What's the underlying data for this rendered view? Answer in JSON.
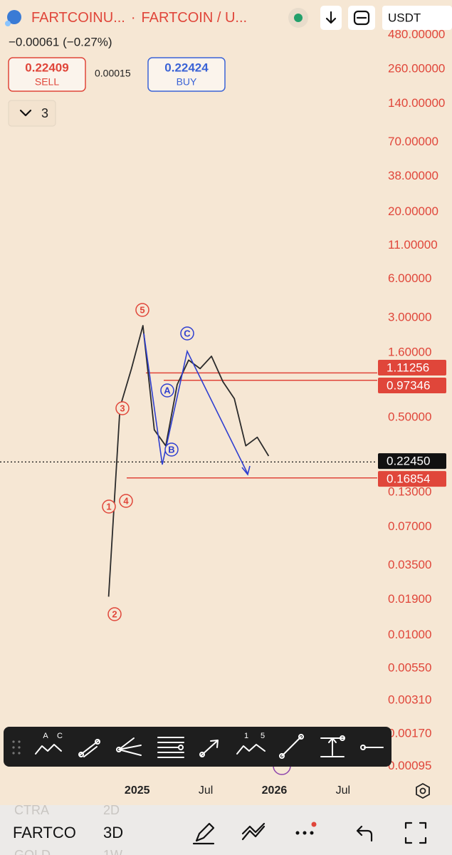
{
  "header": {
    "symbol": "FARTCOINU...",
    "separator": "·",
    "pair": "FARTCOIN / U...",
    "currency": "USDT",
    "change": "−0.00061 (−0.27%)"
  },
  "order": {
    "sell_price": "0.22409",
    "sell_label": "SELL",
    "spread": "0.00015",
    "buy_price": "0.22424",
    "buy_label": "BUY"
  },
  "indicators_toggle": "3",
  "chart_data": {
    "type": "line",
    "log_scale": true,
    "x": [
      "2024-10",
      "2024-11",
      "2024-12",
      "2025-01",
      "2025-02",
      "2025-03",
      "2025-04",
      "2025-05",
      "2025-06",
      "2025-07",
      "2025-08",
      "2025-09",
      "2025-10",
      "2025-11",
      "2025-12"
    ],
    "values": [
      0.02,
      0.6,
      1.2,
      2.6,
      0.4,
      0.3,
      0.9,
      1.4,
      1.2,
      1.5,
      0.95,
      0.7,
      0.3,
      0.35,
      0.25
    ],
    "color": "#2b2b2b",
    "xlim": [
      "2024-01",
      "2026-10"
    ],
    "xticks": [
      {
        "value": "2025-01",
        "label": "2025"
      },
      {
        "value": "2025-07",
        "label": "Jul"
      },
      {
        "value": "2026-01",
        "label": "2026"
      },
      {
        "value": "2026-07",
        "label": "Jul"
      }
    ],
    "ylim": [
      0.00074,
      540
    ],
    "yticks": [
      {
        "value": 480,
        "label": "480.00000"
      },
      {
        "value": 260,
        "label": "260.00000"
      },
      {
        "value": 140,
        "label": "140.00000"
      },
      {
        "value": 70,
        "label": "70.00000"
      },
      {
        "value": 38,
        "label": "38.00000"
      },
      {
        "value": 20,
        "label": "20.00000"
      },
      {
        "value": 11,
        "label": "11.00000"
      },
      {
        "value": 6,
        "label": "6.00000"
      },
      {
        "value": 3,
        "label": "3.00000"
      },
      {
        "value": 1.6,
        "label": "1.60000"
      },
      {
        "value": 0.5,
        "label": "0.50000"
      },
      {
        "value": 0.13,
        "label": "0.13000"
      },
      {
        "value": 0.07,
        "label": "0.07000"
      },
      {
        "value": 0.035,
        "label": "0.03500"
      },
      {
        "value": 0.019,
        "label": "0.01900"
      },
      {
        "value": 0.01,
        "label": "0.01000"
      },
      {
        "value": 0.0055,
        "label": "0.00550"
      },
      {
        "value": 0.0031,
        "label": "0.00310"
      },
      {
        "value": 0.0017,
        "label": "0.00170"
      },
      {
        "value": 0.00095,
        "label": "0.00095"
      }
    ],
    "axis_color": "#e0463a",
    "price_lines": [
      {
        "value": 1.11256,
        "color": "#e0463a"
      },
      {
        "value": 0.97346,
        "color": "#e0463a"
      },
      {
        "value": {
          "value": 0.2245,
          "label": "0.22450"
        },
        "color": "#111111"
      },
      {
        "value": 0.16854,
        "color": "#e0463a"
      }
    ],
    "impulse_labels": [
      "1",
      "2",
      "3",
      "4",
      "5"
    ],
    "impulse_color": "#e0463a",
    "correction_labels": [
      "A",
      "B",
      "C"
    ],
    "correction_color": "#2f3fd0"
  },
  "drawing_toolbar": {
    "abc_tool": [
      "A",
      "C"
    ],
    "impulse_tool": [
      "1",
      "5"
    ]
  },
  "bottom_bar": {
    "symbol": "FARTCO",
    "interval": "3D",
    "prev_symbol": "CTRA",
    "prev_interval": "2D",
    "next_symbol": "GOLD",
    "next_interval": "1W"
  }
}
